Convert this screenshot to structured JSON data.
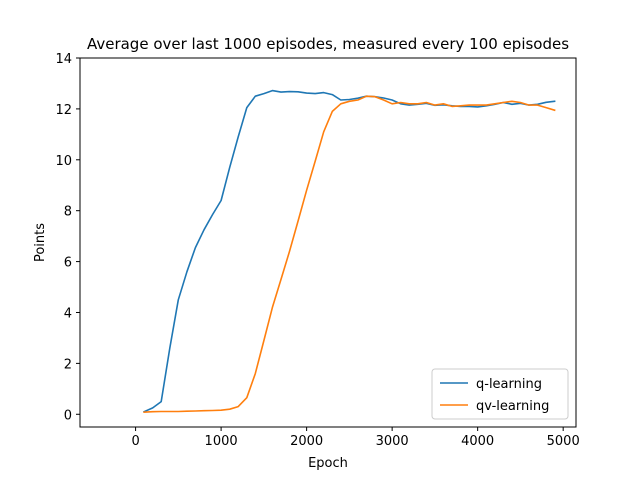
{
  "chart_data": {
    "type": "line",
    "title": "Average over last 1000 episodes, measured every 100 episodes",
    "xlabel": "Epoch",
    "ylabel": "Points",
    "xlim": [
      -650,
      5150
    ],
    "ylim": [
      -0.5,
      14
    ],
    "xticks": [
      0,
      1000,
      2000,
      3000,
      4000,
      5000
    ],
    "yticks": [
      0,
      2,
      4,
      6,
      8,
      10,
      12,
      14
    ],
    "grid": false,
    "legend_position": "lower-right",
    "series": [
      {
        "name": "q-learning",
        "color": "#1f77b4",
        "x": [
          100,
          200,
          300,
          400,
          500,
          600,
          700,
          800,
          900,
          1000,
          1100,
          1200,
          1300,
          1400,
          1500,
          1600,
          1700,
          1800,
          1900,
          2000,
          2100,
          2200,
          2300,
          2400,
          2500,
          2600,
          2700,
          2800,
          2900,
          3000,
          3100,
          3200,
          3300,
          3400,
          3500,
          3600,
          3700,
          3800,
          3900,
          4000,
          4100,
          4200,
          4300,
          4400,
          4500,
          4600,
          4700,
          4800,
          4900
        ],
        "values": [
          0.1,
          0.25,
          0.5,
          2.6,
          4.5,
          5.6,
          6.55,
          7.25,
          7.85,
          8.4,
          9.7,
          10.9,
          12.05,
          12.5,
          12.6,
          12.72,
          12.66,
          12.68,
          12.67,
          12.62,
          12.6,
          12.64,
          12.56,
          12.35,
          12.37,
          12.42,
          12.5,
          12.48,
          12.43,
          12.35,
          12.2,
          12.15,
          12.18,
          12.22,
          12.14,
          12.16,
          12.12,
          12.1,
          12.1,
          12.08,
          12.12,
          12.18,
          12.25,
          12.18,
          12.22,
          12.15,
          12.18,
          12.26,
          12.3
        ]
      },
      {
        "name": "qv-learning",
        "color": "#ff7f0e",
        "x": [
          100,
          200,
          300,
          400,
          500,
          600,
          700,
          800,
          900,
          1000,
          1100,
          1200,
          1300,
          1400,
          1500,
          1600,
          1700,
          1800,
          1900,
          2000,
          2100,
          2200,
          2300,
          2400,
          2500,
          2600,
          2700,
          2800,
          2900,
          3000,
          3100,
          3200,
          3300,
          3400,
          3500,
          3600,
          3700,
          3800,
          3900,
          4000,
          4100,
          4200,
          4300,
          4400,
          4500,
          4600,
          4700,
          4800,
          4900
        ],
        "values": [
          0.08,
          0.1,
          0.11,
          0.11,
          0.11,
          0.12,
          0.13,
          0.14,
          0.15,
          0.16,
          0.2,
          0.3,
          0.65,
          1.6,
          2.9,
          4.2,
          5.3,
          6.4,
          7.6,
          8.8,
          9.95,
          11.1,
          11.9,
          12.2,
          12.3,
          12.35,
          12.5,
          12.48,
          12.35,
          12.2,
          12.25,
          12.2,
          12.2,
          12.25,
          12.15,
          12.2,
          12.1,
          12.12,
          12.15,
          12.15,
          12.15,
          12.2,
          12.25,
          12.3,
          12.25,
          12.15,
          12.15,
          12.05,
          11.95
        ]
      }
    ]
  }
}
